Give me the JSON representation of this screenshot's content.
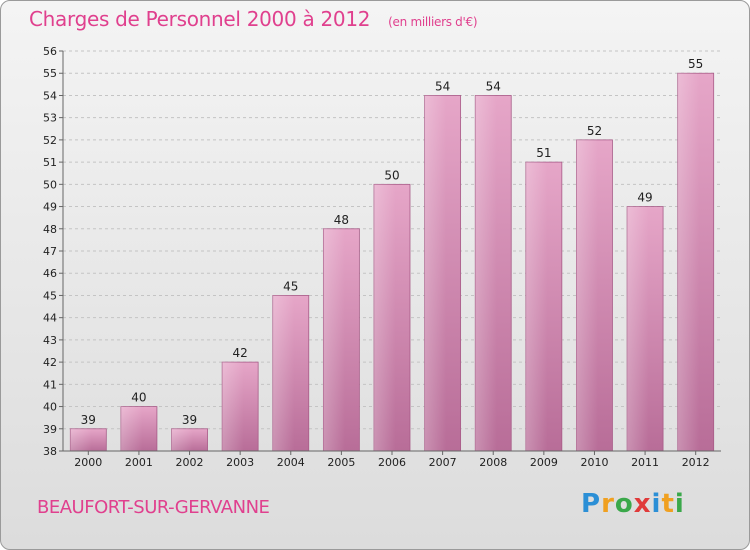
{
  "header": {
    "title": "Charges de Personnel 2000 à 2012",
    "subtitle": "(en milliers d'€)"
  },
  "footer": {
    "commune": "BEAUFORT-SUR-GERVANNE",
    "logo_letters": [
      "P",
      "r",
      "o",
      "x",
      "i",
      "t",
      "i"
    ],
    "logo_colors": [
      "#2b8fd6",
      "#f0a020",
      "#3aa84a",
      "#e03a3a",
      "#2b8fd6",
      "#f0a020",
      "#3aa84a"
    ]
  },
  "chart_data": {
    "type": "bar",
    "title": "Charges de Personnel 2000 à 2012",
    "subtitle": "(en milliers d'€)",
    "categories": [
      "2000",
      "2001",
      "2002",
      "2003",
      "2004",
      "2005",
      "2006",
      "2007",
      "2008",
      "2009",
      "2010",
      "2011",
      "2012"
    ],
    "values": [
      39,
      40,
      39,
      42,
      45,
      48,
      50,
      54,
      54,
      51,
      52,
      49,
      55
    ],
    "value_labels": [
      "39",
      "40",
      "39",
      "42",
      "45",
      "48",
      "50",
      "54",
      "54",
      "51",
      "52",
      "49",
      "55"
    ],
    "ylim": [
      38,
      56
    ],
    "yticks": [
      "38",
      "39",
      "40",
      "41",
      "42",
      "43",
      "44",
      "45",
      "46",
      "47",
      "48",
      "49",
      "50",
      "51",
      "52",
      "53",
      "54",
      "55",
      "56"
    ],
    "grid": true,
    "bar_color": "#d98bb4"
  }
}
